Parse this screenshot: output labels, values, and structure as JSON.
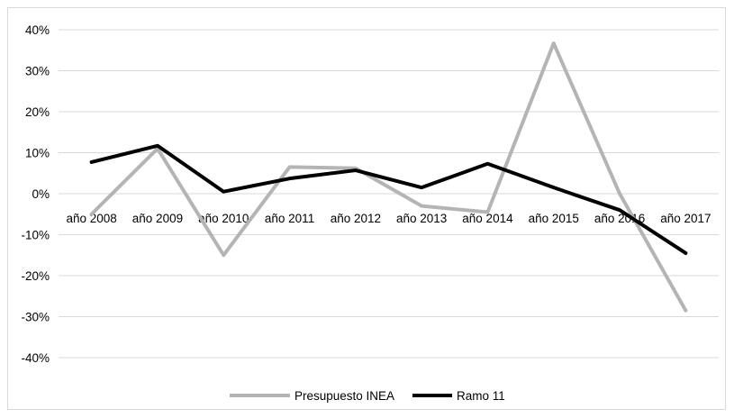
{
  "chart_data": {
    "type": "line",
    "title": "",
    "xlabel": "",
    "ylabel": "",
    "categories": [
      "año 2008",
      "año 2009",
      "año 2010",
      "año 2011",
      "año 2012",
      "año 2013",
      "año 2014",
      "año 2015",
      "año 2016",
      "año 2017"
    ],
    "ylim": [
      -0.4,
      0.4
    ],
    "yticks": [
      0.4,
      0.3,
      0.2,
      0.1,
      0.0,
      -0.1,
      -0.2,
      -0.3,
      -0.4
    ],
    "ytick_labels": [
      "40%",
      "30%",
      "20%",
      "10%",
      "0%",
      "-10%",
      "-20%",
      "-30%",
      "-40%"
    ],
    "grid": "horizontal",
    "legend_position": "bottom",
    "series": [
      {
        "name": "Presupuesto INEA",
        "color": "#b4b4b4",
        "values": [
          -0.05,
          0.11,
          -0.15,
          0.065,
          0.062,
          -0.03,
          -0.045,
          0.367,
          0.0,
          -0.285
        ]
      },
      {
        "name": "Ramo 11",
        "color": "#000000",
        "values": [
          0.077,
          0.117,
          0.005,
          0.037,
          0.057,
          0.015,
          0.073,
          0.015,
          -0.04,
          -0.145
        ]
      }
    ]
  }
}
